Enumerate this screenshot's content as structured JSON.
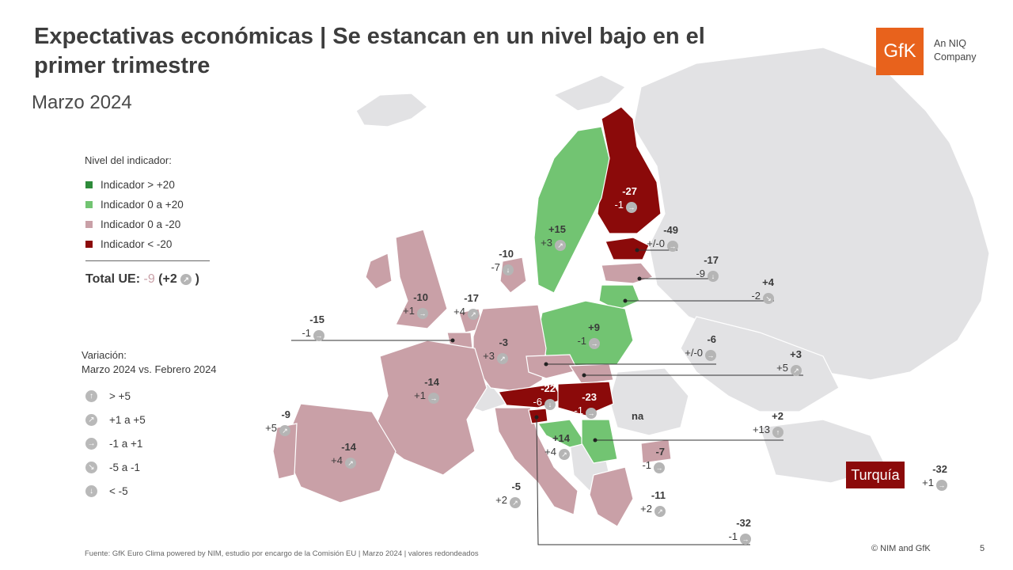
{
  "title": "Expectativas económicas | Se estancan en un nivel bajo en el primer trimestre",
  "subtitle": "Marzo 2024",
  "logo": {
    "text": "GfK",
    "tagline": "An NIQ Company",
    "color": "#e8621c"
  },
  "legend": {
    "title": "Nivel del indicador:",
    "items": [
      {
        "label": "Indicador > +20",
        "color": "#2e8b3a"
      },
      {
        "label": "Indicador 0 a +20",
        "color": "#72c472"
      },
      {
        "label": "Indicador 0 a -20",
        "color": "#c9a0a7"
      },
      {
        "label": "Indicador < -20",
        "color": "#8b0a0a"
      }
    ]
  },
  "total": {
    "label": "Total UE:",
    "value": "-9",
    "change": "(+2",
    "close": ")"
  },
  "variation": {
    "title_line1": "Variación:",
    "title_line2": "Marzo 2024 vs. Febrero 2024",
    "items": [
      {
        "icon": "arrow-up-icon",
        "glyph": "↑",
        "label": "> +5"
      },
      {
        "icon": "arrow-up-right-icon",
        "glyph": "↗",
        "label": "+1 a +5"
      },
      {
        "icon": "arrow-right-icon",
        "glyph": "→",
        "label": "-1 a +1"
      },
      {
        "icon": "arrow-down-right-icon",
        "glyph": "↘",
        "label": "-5 a -1"
      },
      {
        "icon": "arrow-down-icon",
        "glyph": "↓",
        "label": "< -5"
      }
    ]
  },
  "countries": [
    {
      "key": "finland",
      "level": "-27",
      "change": "-1",
      "glyph": "→"
    },
    {
      "key": "estonia",
      "level": "-49",
      "change": "+/-0",
      "glyph": "→"
    },
    {
      "key": "latvia",
      "level": "-17",
      "change": "-9",
      "glyph": "↓"
    },
    {
      "key": "lithuania",
      "level": "+4",
      "change": "-2",
      "glyph": "↘"
    },
    {
      "key": "sweden",
      "level": "+15",
      "change": "+3",
      "glyph": "↗"
    },
    {
      "key": "denmark",
      "level": "-10",
      "change": "-7",
      "glyph": "↓"
    },
    {
      "key": "poland",
      "level": "+9",
      "change": "-1",
      "glyph": "→"
    },
    {
      "key": "czechia",
      "level": "-6",
      "change": "+/-0",
      "glyph": "→"
    },
    {
      "key": "slovakia",
      "level": "+3",
      "change": "+5",
      "glyph": "↗"
    },
    {
      "key": "ireland",
      "level": "-10",
      "change": "+1",
      "glyph": "→"
    },
    {
      "key": "netherlands",
      "level": "-17",
      "change": "+4",
      "glyph": "↗"
    },
    {
      "key": "belgium",
      "level": "-15",
      "change": "-1",
      "glyph": "→"
    },
    {
      "key": "germany",
      "level": "-3",
      "change": "+3",
      "glyph": "↗"
    },
    {
      "key": "france",
      "level": "-14",
      "change": "+1",
      "glyph": "→"
    },
    {
      "key": "austria",
      "level": "-22",
      "change": "-6",
      "glyph": "↓"
    },
    {
      "key": "hungary",
      "level": "-23",
      "change": "-1",
      "glyph": "→"
    },
    {
      "key": "romania",
      "level": "na"
    },
    {
      "key": "bulgaria",
      "level": "+2",
      "change": "+13",
      "glyph": "↑"
    },
    {
      "key": "croatia",
      "level": "+14",
      "change": "+4",
      "glyph": "↗"
    },
    {
      "key": "portugal",
      "level": "-9",
      "change": "+5",
      "glyph": "↗"
    },
    {
      "key": "spain",
      "level": "-14",
      "change": "+4",
      "glyph": "↗"
    },
    {
      "key": "italy",
      "level": "-5",
      "change": "+2",
      "glyph": "↗"
    },
    {
      "key": "greece",
      "level": "-7",
      "change": "-1",
      "glyph": "→"
    },
    {
      "key": "cyprus",
      "level": "-11",
      "change": "+2",
      "glyph": "↗"
    },
    {
      "key": "slovenia",
      "level": "-32",
      "change": "-1",
      "glyph": "→"
    },
    {
      "key": "turkey",
      "name": "Turquía",
      "level": "-32",
      "change": "+1",
      "glyph": "→"
    }
  ],
  "footer": {
    "source": "Fuente: GfK Euro Clima powered by NIM, estudio por encargo de la Comisión EU | Marzo 2024 | valores redondeados",
    "copyright": "© NIM and GfK",
    "page": "5"
  }
}
